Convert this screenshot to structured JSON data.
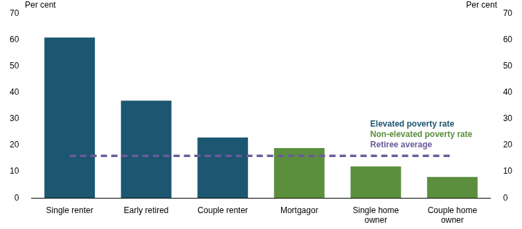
{
  "chart_data": {
    "type": "bar",
    "ylabel": "Per cent",
    "y2label": "Per cent",
    "categories": [
      "Single renter",
      "Early retired",
      "Couple renter",
      "Mortgagor",
      "Single home owner",
      "Couple home owner"
    ],
    "series": [
      {
        "name": "Elevated poverty rate",
        "color": "#1c5670",
        "values": [
          61,
          37,
          23,
          null,
          null,
          null
        ]
      },
      {
        "name": "Non-elevated poverty rate",
        "color": "#5b8f3e",
        "values": [
          null,
          null,
          null,
          19,
          12,
          8
        ]
      },
      {
        "name": "Retiree average",
        "type": "line",
        "color": "#6b5b9a",
        "line_style": "dashed",
        "values": [
          16,
          16,
          16,
          16,
          16,
          16
        ]
      }
    ],
    "ylim": [
      0,
      70
    ],
    "yticks": [
      0,
      10,
      20,
      30,
      40,
      50,
      60,
      70
    ],
    "y2lim": [
      0,
      70
    ],
    "y2ticks": [
      0,
      10,
      20,
      30,
      40,
      50,
      60,
      70
    ],
    "grid": false,
    "legend": "right"
  }
}
